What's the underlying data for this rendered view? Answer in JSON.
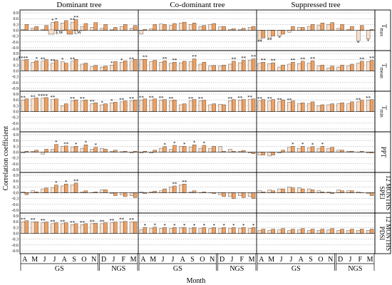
{
  "chart_data": {
    "type": "bar",
    "column_titles": [
      "Dominant tree",
      "Co-dominant tree",
      "Suppressed tree"
    ],
    "row_labels": [
      {
        "main": "T",
        "sub": "max"
      },
      {
        "main": "T",
        "sub": "mean"
      },
      {
        "main": "T",
        "sub": "min"
      },
      {
        "main": "PPT",
        "sub": ""
      },
      {
        "main": "SPEI",
        "sub": "12 MONTHS"
      },
      {
        "main": "PDSI",
        "sub": "12 MONTHS"
      }
    ],
    "y_ticks": [
      "0.9",
      "0.6",
      "0.3",
      "0.0",
      "-0.3",
      "-0.6",
      "-0.9"
    ],
    "ylim": [
      -0.9,
      0.9
    ],
    "ylabel": "Correlation coefficient",
    "xlabel": "Month",
    "months": [
      "A",
      "M",
      "J",
      "J",
      "A",
      "S",
      "O",
      "N",
      "D",
      "J",
      "F",
      "M"
    ],
    "groups": [
      {
        "label": "GS",
        "start": 0,
        "end": 7
      },
      {
        "label": "NGS",
        "start": 8,
        "end": 11
      }
    ],
    "series_names": [
      "EW",
      "LW"
    ],
    "series_colors": {
      "EW": "#fbe0cc",
      "LW": "#eea061"
    },
    "legend": {
      "EW": "EW",
      "LW": "LW",
      "position": "top-left of Dominant tree / Tmax panel"
    },
    "panels": [
      [
        {
          "EW": [
            0.05,
            0.12,
            0.05,
            0.4,
            0.38,
            0.42,
            0.2,
            0.15,
            0.1,
            0.05,
            0.2,
            0.1
          ],
          "LW": [
            0.3,
            0.2,
            0.25,
            0.45,
            0.5,
            0.55,
            0.35,
            0.4,
            0.3,
            0.15,
            0.3,
            0.25
          ],
          "EW_stars": [
            "",
            "",
            "",
            "*",
            "",
            "**",
            "",
            "",
            "",
            "",
            "",
            ""
          ],
          "LW_stars": [
            "",
            "",
            "",
            "*",
            "",
            "**",
            "",
            "",
            "",
            "",
            "",
            ""
          ]
        },
        {
          "EW": [
            -0.2,
            0.08,
            0.32,
            0.25,
            0.38,
            0.3,
            0.2,
            0.3,
            0.18,
            0.05,
            0.05,
            0.15
          ],
          "LW": [
            0.05,
            0.3,
            0.3,
            0.35,
            0.42,
            0.38,
            0.25,
            0.35,
            0.2,
            0.08,
            0.1,
            0.2
          ],
          "EW_stars": [
            "",
            "",
            "",
            "",
            "",
            "",
            "",
            "",
            "",
            "",
            "",
            ""
          ],
          "LW_stars": [
            "",
            "",
            "",
            "",
            "",
            "",
            "",
            "",
            "",
            "",
            "",
            ""
          ]
        },
        {
          "EW": [
            -0.5,
            -0.4,
            -0.3,
            -0.1,
            0.15,
            0.2,
            0.25,
            0.3,
            0.1,
            0.05,
            -0.55,
            -0.45
          ],
          "LW": [
            -0.4,
            -0.3,
            -0.2,
            0.2,
            0.15,
            0.3,
            0.38,
            0.4,
            0.3,
            0.2,
            0.25,
            0.05
          ],
          "EW_stars": [
            "**",
            "**",
            "*",
            "",
            "",
            "",
            "",
            "",
            "",
            "",
            "*",
            "*"
          ],
          "LW_stars": [
            "",
            "",
            "",
            "",
            "",
            "",
            "",
            "",
            "",
            "",
            "",
            ""
          ]
        }
      ],
      [
        {
          "EW": [
            0.55,
            0.45,
            0.5,
            0.4,
            0.48,
            0.5,
            0.35,
            0.22,
            0.2,
            0.3,
            0.45,
            0.5
          ],
          "LW": [
            0.58,
            0.52,
            0.58,
            0.55,
            0.4,
            0.6,
            0.4,
            0.28,
            0.25,
            0.48,
            0.52,
            0.6
          ],
          "EW_stars": [
            "****",
            "",
            "**",
            "**",
            "*",
            "**",
            "",
            "",
            "",
            "*",
            "*",
            "**"
          ],
          "LW_stars": [
            "",
            "*",
            "",
            "",
            "",
            "",
            "",
            "",
            "",
            "",
            "",
            ""
          ]
        },
        {
          "EW": [
            0.58,
            0.48,
            0.45,
            0.4,
            0.42,
            0.48,
            0.35,
            0.25,
            0.25,
            0.35,
            0.42,
            0.55
          ],
          "LW": [
            0.6,
            0.55,
            0.52,
            0.45,
            0.5,
            0.62,
            0.45,
            0.28,
            0.3,
            0.5,
            0.55,
            0.62
          ],
          "EW_stars": [
            "",
            "",
            "",
            "",
            "",
            "",
            "",
            "",
            "",
            "",
            "",
            ""
          ],
          "LW_stars": [
            "**",
            "",
            "**",
            "**",
            "",
            "**",
            "",
            "",
            "",
            "**",
            "**",
            "**"
          ]
        },
        {
          "EW": [
            0.4,
            0.38,
            0.2,
            0.35,
            0.38,
            0.4,
            0.25,
            0.15,
            0.2,
            0.25,
            0.4,
            0.48
          ],
          "LW": [
            0.45,
            0.42,
            0.3,
            0.45,
            0.5,
            0.52,
            0.3,
            0.25,
            0.3,
            0.35,
            0.5,
            0.55
          ],
          "EW_stars": [
            "",
            "",
            "",
            "",
            "",
            "",
            "",
            "",
            "",
            "",
            "",
            ""
          ],
          "LW_stars": [
            "**",
            "**",
            "",
            "**",
            "**",
            "**",
            "",
            "",
            "",
            "",
            "**",
            "**"
          ]
        }
      ],
      [
        {
          "EW": [
            0.6,
            0.65,
            0.7,
            0.62,
            0.3,
            0.55,
            0.55,
            0.4,
            0.35,
            0.45,
            0.5,
            0.55
          ],
          "LW": [
            0.65,
            0.7,
            0.72,
            0.65,
            0.4,
            0.6,
            0.6,
            0.45,
            0.4,
            0.48,
            0.55,
            0.6
          ],
          "EW_stars": [
            "**",
            "**",
            "****",
            "**",
            "",
            "**",
            "**",
            "**",
            "*",
            "*",
            "**",
            "**"
          ],
          "LW_stars": [
            "",
            "",
            "",
            "",
            "",
            "",
            "",
            "",
            "",
            "",
            "",
            ""
          ]
        },
        {
          "EW": [
            0.6,
            0.6,
            0.58,
            0.55,
            0.35,
            0.55,
            0.55,
            0.35,
            0.38,
            0.55,
            0.58,
            0.62
          ],
          "LW": [
            0.65,
            0.65,
            0.62,
            0.6,
            0.4,
            0.62,
            0.58,
            0.4,
            0.35,
            0.62,
            0.62,
            0.65
          ],
          "EW_stars": [
            "**",
            "**",
            "**",
            "**",
            "",
            "**",
            "**",
            "",
            "",
            "**",
            "**",
            "**"
          ],
          "LW_stars": [
            "",
            "",
            "",
            "",
            "",
            "",
            "",
            "",
            "",
            "",
            "",
            ""
          ]
        },
        {
          "EW": [
            0.55,
            0.55,
            0.5,
            0.48,
            0.4,
            0.4,
            0.3,
            0.35,
            0.4,
            0.4,
            0.5,
            0.58
          ],
          "LW": [
            0.62,
            0.62,
            0.6,
            0.55,
            0.45,
            0.5,
            0.35,
            0.4,
            0.45,
            0.5,
            0.58,
            0.62
          ],
          "EW_stars": [
            "**",
            "**",
            "**",
            "**",
            "",
            "",
            "",
            "",
            "",
            "",
            "**",
            "**"
          ],
          "LW_stars": [
            "",
            "",
            "",
            "",
            "",
            "",
            "",
            "",
            "",
            "",
            "",
            ""
          ]
        }
      ],
      [
        {
          "EW": [
            -0.05,
            0.05,
            -0.1,
            0.15,
            0.3,
            0.25,
            0.2,
            0.15,
            0.2,
            0.05,
            0.02,
            -0.05
          ],
          "LW": [
            0.05,
            0.1,
            0.15,
            0.4,
            0.32,
            0.3,
            0.38,
            0.25,
            0.15,
            0.1,
            0.05,
            0.05
          ],
          "EW_stars": [
            "",
            "",
            "",
            "",
            "",
            "",
            "",
            "",
            "",
            "",
            "",
            ""
          ],
          "LW_stars": [
            "",
            "",
            "",
            "*",
            "**",
            "*",
            "*",
            "*",
            "",
            "",
            "",
            ""
          ]
        },
        {
          "EW": [
            -0.05,
            -0.05,
            0.2,
            0.15,
            0.3,
            0.25,
            0.2,
            0.2,
            0.28,
            0.15,
            0.05,
            -0.05
          ],
          "LW": [
            0.05,
            0.1,
            0.28,
            0.35,
            0.3,
            0.38,
            0.35,
            0.3,
            0.05,
            0.05,
            0.08,
            -0.08
          ],
          "EW_stars": [
            "",
            "",
            "",
            "",
            "",
            "",
            "",
            "",
            "",
            "",
            "",
            ""
          ],
          "LW_stars": [
            "",
            "",
            "*",
            "*",
            "*",
            "*",
            "*",
            "",
            "",
            "",
            "",
            ""
          ]
        },
        {
          "EW": [
            -0.15,
            -0.2,
            -0.05,
            0.25,
            0.2,
            0.22,
            0.2,
            0.2,
            0.1,
            0.05,
            0.0,
            -0.05
          ],
          "LW": [
            -0.15,
            -0.15,
            0.1,
            0.3,
            0.3,
            0.28,
            0.3,
            0.25,
            0.1,
            0.05,
            0.05,
            -0.05
          ],
          "EW_stars": [
            "",
            "",
            "",
            "",
            "",
            "",
            "",
            "",
            "",
            "",
            "",
            ""
          ],
          "LW_stars": [
            "",
            "",
            "",
            "*",
            "*",
            "*",
            "*",
            "",
            "",
            "",
            "",
            ""
          ]
        }
      ],
      [
        {
          "EW": [
            0.05,
            0.1,
            0.2,
            0.25,
            0.35,
            0.4,
            0.05,
            0.0,
            0.15,
            -0.05,
            -0.1,
            -0.15
          ],
          "LW": [
            -0.1,
            0.05,
            0.25,
            0.4,
            0.45,
            0.5,
            0.1,
            0.05,
            0.15,
            -0.15,
            -0.2,
            -0.25
          ],
          "EW_stars": [
            "",
            "",
            "",
            "",
            "",
            "",
            "",
            "",
            "",
            "",
            "",
            ""
          ],
          "LW_stars": [
            "",
            "",
            "",
            "*",
            "*",
            "**",
            "",
            "",
            "",
            "",
            "",
            ""
          ]
        },
        {
          "EW": [
            0.05,
            0.05,
            0.1,
            0.3,
            0.4,
            0.05,
            0.0,
            0.0,
            -0.1,
            -0.2,
            -0.15,
            -0.2
          ],
          "LW": [
            -0.05,
            0.08,
            0.2,
            0.35,
            0.45,
            0.1,
            0.05,
            -0.05,
            -0.2,
            -0.3,
            -0.25,
            -0.3
          ],
          "EW_stars": [
            "",
            "",
            "",
            "",
            "",
            "",
            "",
            "",
            "",
            "",
            "",
            ""
          ],
          "LW_stars": [
            "",
            "",
            "",
            "**",
            "**",
            "",
            "",
            "",
            "",
            "",
            "",
            ""
          ]
        },
        {
          "EW": [
            0.1,
            0.15,
            0.2,
            0.3,
            0.25,
            0.2,
            0.1,
            0.05,
            0.15,
            0.1,
            0.05,
            -0.05
          ],
          "LW": [
            0.05,
            0.1,
            0.2,
            0.25,
            0.2,
            0.15,
            0.05,
            -0.05,
            0.1,
            0.1,
            0.0,
            -0.15
          ],
          "EW_stars": [
            "",
            "",
            "",
            "",
            "",
            "",
            "",
            "",
            "",
            "",
            "",
            ""
          ],
          "LW_stars": [
            "",
            "",
            "",
            "",
            "",
            "",
            "",
            "",
            "",
            "",
            "",
            ""
          ]
        }
      ],
      [
        {
          "EW": [
            0.6,
            0.58,
            0.55,
            0.5,
            0.5,
            0.45,
            0.45,
            0.5,
            0.5,
            0.55,
            0.6,
            0.58
          ],
          "LW": [
            0.65,
            0.6,
            0.58,
            0.55,
            0.55,
            0.5,
            0.5,
            0.52,
            0.55,
            0.58,
            0.62,
            0.6
          ],
          "EW_stars": [
            "**",
            "**",
            "**",
            "**",
            "**",
            "**",
            "**",
            "**",
            "**",
            "**",
            "**",
            "**"
          ],
          "LW_stars": [
            "",
            "",
            "",
            "",
            "",
            "",
            "",
            "",
            "",
            "",
            "",
            ""
          ]
        },
        {
          "EW": [
            0.2,
            0.25,
            0.25,
            0.25,
            0.28,
            0.25,
            0.25,
            0.25,
            0.25,
            0.25,
            0.25,
            0.25
          ],
          "LW": [
            0.3,
            0.32,
            0.3,
            0.3,
            0.3,
            0.3,
            0.3,
            0.3,
            0.3,
            0.3,
            0.3,
            0.3
          ],
          "EW_stars": [
            "",
            "",
            "",
            "",
            "",
            "",
            "",
            "",
            "",
            "",
            "",
            ""
          ],
          "LW_stars": [
            "*",
            "*",
            "*",
            "*",
            "*",
            "*",
            "*",
            "*",
            "*",
            "*",
            "*",
            "*"
          ]
        },
        {
          "EW": [
            0.15,
            0.15,
            0.18,
            0.15,
            0.18,
            0.15,
            0.15,
            0.18,
            0.15,
            0.15,
            0.15,
            0.15
          ],
          "LW": [
            0.22,
            0.22,
            0.25,
            0.22,
            0.25,
            0.22,
            0.22,
            0.25,
            0.22,
            0.22,
            0.22,
            0.22
          ],
          "EW_stars": [
            "",
            "",
            "",
            "",
            "",
            "",
            "",
            "",
            "",
            "",
            "",
            ""
          ],
          "LW_stars": [
            "",
            "",
            "",
            "",
            "",
            "",
            "",
            "",
            "",
            "",
            "",
            ""
          ]
        }
      ]
    ]
  }
}
